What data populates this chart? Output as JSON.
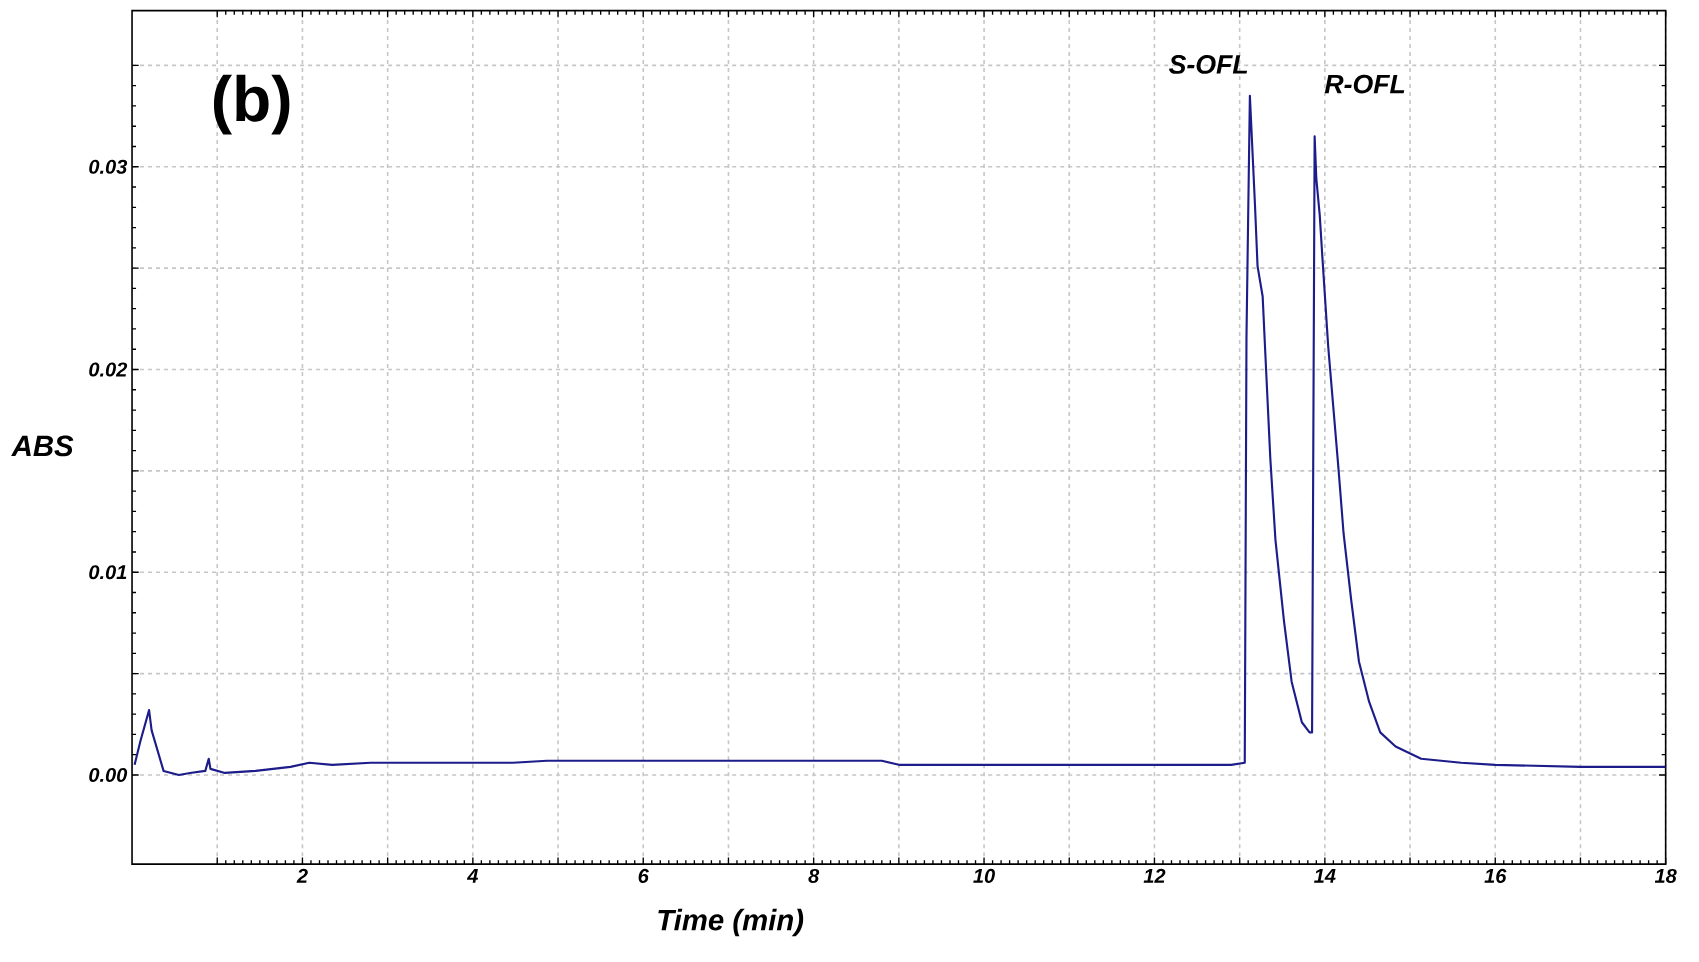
{
  "chart_data": {
    "type": "line",
    "xlabel": "Time (min)",
    "ylabel": "ABS",
    "annotations": [
      "(b)",
      "S-OFL",
      "R-OFL"
    ],
    "xlim": [
      0,
      18
    ],
    "ylim": [
      -0.0044,
      0.0377
    ],
    "xticks": [
      {
        "value": 1,
        "label": null
      },
      2,
      {
        "value": 3,
        "label": null
      },
      4,
      {
        "value": 5,
        "label": null
      },
      6,
      {
        "value": 7,
        "label": null
      },
      8,
      {
        "value": 9,
        "label": null
      },
      10,
      {
        "value": 11,
        "label": null
      },
      12,
      {
        "value": 13,
        "label": null
      },
      14,
      {
        "value": 15,
        "label": null
      },
      16,
      {
        "value": 17,
        "label": null
      },
      18
    ],
    "yticks": [
      {
        "value": 0,
        "label": "0.00"
      },
      {
        "value": 0.005,
        "label": null
      },
      {
        "value": 0.01,
        "label": "0.01"
      },
      {
        "value": 0.015,
        "label": null
      },
      {
        "value": 0.02,
        "label": "0.02"
      },
      {
        "value": 0.025,
        "label": null
      },
      {
        "value": 0.03,
        "label": "0.03"
      },
      {
        "value": 0.035,
        "label": null
      }
    ],
    "grid": true,
    "marker": "none",
    "line_style": "solid",
    "series": [
      {
        "color": "#1c1c8a",
        "x": [
          0.03,
          0.1,
          0.2,
          0.23,
          0.3,
          0.37,
          0.55,
          0.68,
          0.86,
          0.9,
          0.92,
          1.09,
          1.45,
          1.86,
          2.08,
          2.35,
          2.8,
          3.0,
          4.47,
          4.87,
          5.5,
          6.7,
          8.8,
          9.0,
          12.9,
          13.06,
          13.08,
          13.12,
          13.18,
          13.21,
          13.27,
          13.3,
          13.36,
          13.42,
          13.52,
          13.61,
          13.73,
          13.82,
          13.85,
          13.88,
          13.9,
          13.94,
          13.97,
          14.04,
          14.1,
          14.16,
          14.22,
          14.31,
          14.4,
          14.52,
          14.65,
          14.83,
          15.13,
          15.6,
          16.0,
          17.0,
          18.0
        ],
        "values": [
          0.0005,
          0.0017,
          0.0032,
          0.0022,
          0.0012,
          0.0002,
          0.0,
          0.0001,
          0.0002,
          0.0008,
          0.0003,
          0.0001,
          0.0002,
          0.0004,
          0.0006,
          0.0005,
          0.0006,
          0.0006,
          0.0006,
          0.0007,
          0.0007,
          0.0007,
          0.0007,
          0.0005,
          0.0005,
          0.0006,
          0.0216,
          0.0335,
          0.0281,
          0.0251,
          0.0236,
          0.0209,
          0.0156,
          0.0116,
          0.0076,
          0.0046,
          0.0026,
          0.0021,
          0.0021,
          0.0315,
          0.0294,
          0.0276,
          0.0256,
          0.0211,
          0.0181,
          0.0151,
          0.0119,
          0.0086,
          0.0056,
          0.0036,
          0.0021,
          0.0014,
          0.0008,
          0.0006,
          0.0005,
          0.0004,
          0.0004
        ]
      }
    ]
  }
}
